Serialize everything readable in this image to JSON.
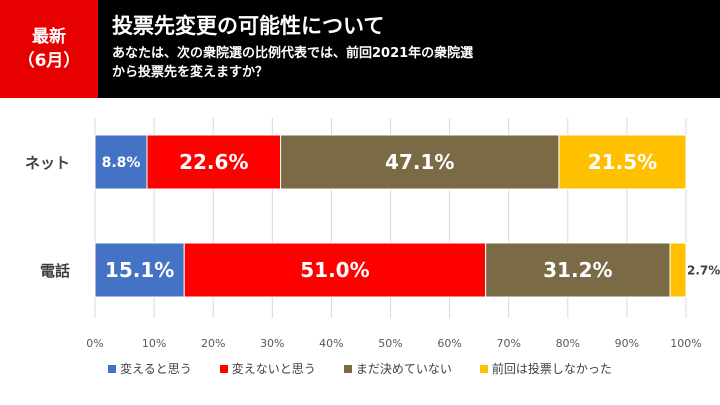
{
  "header": {
    "badge_line1": "最新",
    "badge_line2": "（6月）",
    "title": "投票先変更の可能性について",
    "subtitle_line1": "あなたは、次の衆院選の比例代表では、前回2021年の衆院選",
    "subtitle_line2": "から投票先を変えますか？"
  },
  "colors": {
    "header_bg": "#000000",
    "badge_bg": "#e60000",
    "series": [
      "#4472c4",
      "#ff0000",
      "#7a6a45",
      "#ffc000"
    ]
  },
  "chart_data": {
    "type": "bar",
    "orientation": "horizontal",
    "stacked": true,
    "percent_stacked": true,
    "categories": [
      "ネット",
      "電話"
    ],
    "series": [
      {
        "name": "変えると思う",
        "values": [
          8.8,
          15.1
        ],
        "labels": [
          "8.8%",
          "15.1%"
        ]
      },
      {
        "name": "変えないと思う",
        "values": [
          22.6,
          51.0
        ],
        "labels": [
          "22.6%",
          "51.0%"
        ]
      },
      {
        "name": "まだ決めていない",
        "values": [
          47.1,
          31.2
        ],
        "labels": [
          "47.1%",
          "31.2%"
        ]
      },
      {
        "name": "前回は投票しなかった",
        "values": [
          21.5,
          2.7
        ],
        "labels": [
          "21.5%",
          "2.7%"
        ]
      }
    ],
    "xlim": [
      0,
      100
    ],
    "x_ticks": [
      "0%",
      "10%",
      "20%",
      "30%",
      "40%",
      "50%",
      "60%",
      "70%",
      "80%",
      "90%",
      "100%"
    ],
    "grid": true,
    "legend_position": "bottom"
  }
}
